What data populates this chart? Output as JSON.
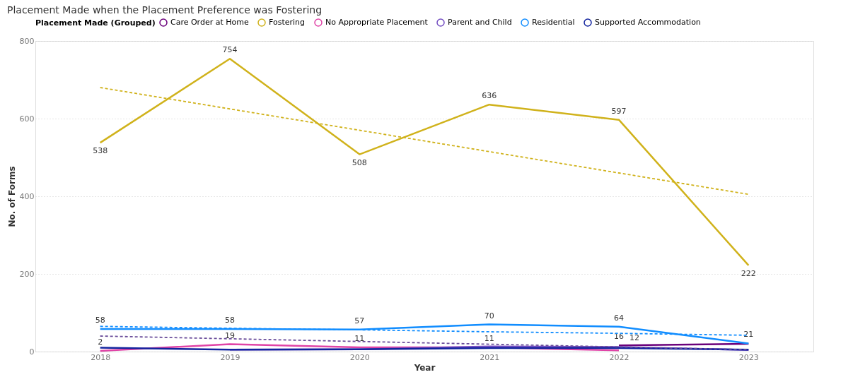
{
  "chart_data": {
    "type": "line",
    "title": "Placement Made when the Placement Preference was Fostering",
    "xlabel": "Year",
    "ylabel": "No. of Forms",
    "legend_title": "Placement Made (Grouped)",
    "categories": [
      "2018",
      "2019",
      "2020",
      "2021",
      "2022",
      "2023"
    ],
    "series": [
      {
        "name": "Care Order at Home",
        "color": "#6b007b",
        "values": [
          null,
          null,
          null,
          null,
          16,
          20
        ],
        "value_labels": [
          null,
          null,
          null,
          null,
          "16",
          null
        ]
      },
      {
        "name": "Fostering",
        "color": "#d0b21b",
        "values": [
          538,
          754,
          508,
          636,
          597,
          222
        ],
        "value_labels": [
          "538",
          "754",
          "508",
          "636",
          "597",
          "222"
        ]
      },
      {
        "name": "No Appropriate Placement",
        "color": "#e044a7",
        "values": [
          2,
          19,
          11,
          11,
          3,
          null
        ],
        "value_labels": [
          "2",
          "19",
          "11",
          "11",
          null,
          null
        ]
      },
      {
        "name": "Parent and Child",
        "color": "#744ec2",
        "values": [
          null,
          5,
          6,
          13,
          12,
          4
        ],
        "value_labels": [
          null,
          null,
          null,
          null,
          "12",
          null
        ]
      },
      {
        "name": "Residential",
        "color": "#118dff",
        "values": [
          58,
          58,
          57,
          70,
          64,
          21
        ],
        "value_labels": [
          "58",
          "58",
          "57",
          "70",
          "64",
          "21"
        ]
      },
      {
        "name": "Supported Accommodation",
        "color": "#12239e",
        "values": [
          10,
          5,
          6,
          9,
          9,
          5
        ]
      },
      {
        "type": "line",
        "line_style": "dashed",
        "color": "#d0b21b",
        "values": [
          680,
          625,
          570,
          515,
          460,
          405
        ]
      },
      {
        "type": "line",
        "line_style": "dashed",
        "color": "#118dff",
        "values": [
          65,
          60,
          56,
          51,
          47,
          42
        ]
      },
      {
        "type": "line",
        "line_style": "dashed",
        "color": "#6b4e9b",
        "values": [
          40,
          33,
          26,
          19,
          12,
          5
        ]
      }
    ],
    "ylim": [
      0,
      800
    ],
    "yticks": [
      0,
      200,
      400,
      600,
      800
    ],
    "grid": "y",
    "legend": "top left"
  }
}
